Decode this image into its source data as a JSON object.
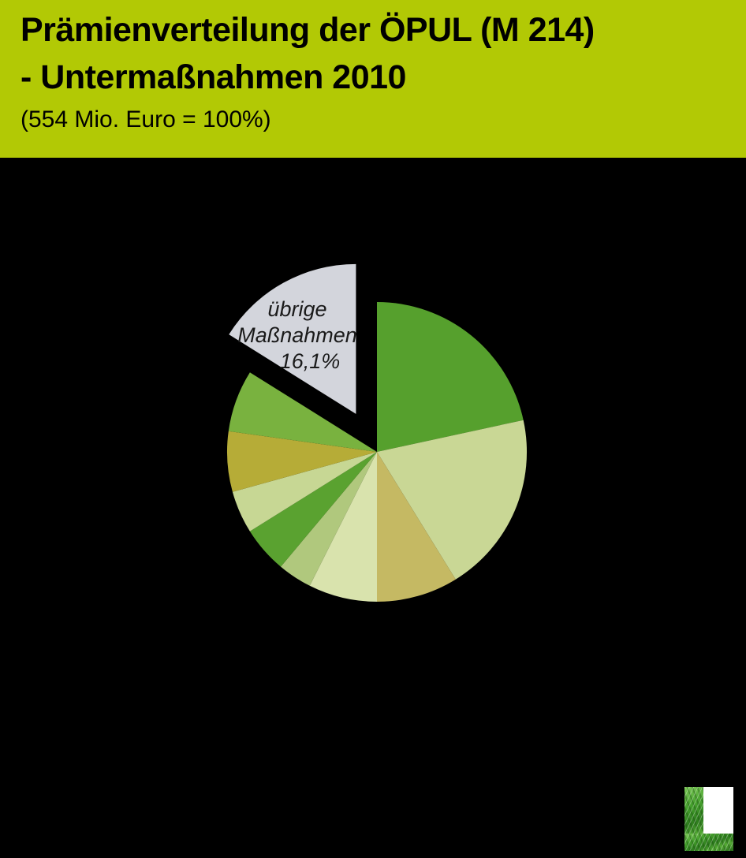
{
  "page": {
    "background": "#000000"
  },
  "header": {
    "background": "#b2c905",
    "text_color": "#000000",
    "title_line1": "Prämienverteilung der ÖPUL (M 214)",
    "title_line2": "- Untermaßnahmen 2010",
    "subtitle": "(554 Mio. Euro = 100%)"
  },
  "chart_data": {
    "type": "pie",
    "title": "Prämienverteilung der ÖPUL (M 214) - Untermaßnahmen 2010",
    "total_label": "554 Mio. Euro = 100%",
    "start_angle_deg": 0,
    "direction": "clockwise",
    "background": "#000000",
    "segments": [
      {
        "label": "",
        "value": 21.6,
        "color": "#56a02d",
        "exploded": false
      },
      {
        "label": "",
        "value": 19.6,
        "color": "#c9d795",
        "exploded": false
      },
      {
        "label": "",
        "value": 8.8,
        "color": "#c5b963",
        "exploded": false
      },
      {
        "label": "",
        "value": 7.4,
        "color": "#d9e3ad",
        "exploded": false
      },
      {
        "label": "",
        "value": 3.7,
        "color": "#b0c87d",
        "exploded": false
      },
      {
        "label": "",
        "value": 5.0,
        "color": "#5aa230",
        "exploded": false
      },
      {
        "label": "",
        "value": 4.6,
        "color": "#c7d794",
        "exploded": false
      },
      {
        "label": "",
        "value": 6.5,
        "color": "#b6ac37",
        "exploded": false
      },
      {
        "label": "",
        "value": 6.7,
        "color": "#79b23f",
        "exploded": false
      },
      {
        "label": "übrige Maßnahmen",
        "value": 16.1,
        "color": "#d3d5dc",
        "exploded": true
      }
    ],
    "legend": "none"
  },
  "callout": {
    "line1": "übrige",
    "line2": "Maßnahmen",
    "line3": "16,1%",
    "text_color": "#1a1a1a"
  },
  "logo": {
    "name": "grass-L-logo"
  }
}
